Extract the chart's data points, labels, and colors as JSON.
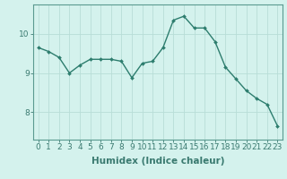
{
  "x": [
    0,
    1,
    2,
    3,
    4,
    5,
    6,
    7,
    8,
    9,
    10,
    11,
    12,
    13,
    14,
    15,
    16,
    17,
    18,
    19,
    20,
    21,
    22,
    23
  ],
  "y": [
    9.65,
    9.55,
    9.4,
    9.0,
    9.2,
    9.35,
    9.35,
    9.35,
    9.3,
    8.88,
    9.25,
    9.3,
    9.65,
    10.35,
    10.45,
    10.15,
    10.15,
    9.8,
    9.15,
    8.85,
    8.55,
    8.35,
    8.2,
    7.65
  ],
  "line_color": "#2d7d6e",
  "marker": "D",
  "marker_size": 2.0,
  "line_width": 1.0,
  "background_color": "#d4f2ed",
  "grid_color": "#b8ddd7",
  "xlabel": "Humidex (Indice chaleur)",
  "xlabel_fontsize": 7.5,
  "yticks": [
    8,
    9,
    10
  ],
  "xtick_labels": [
    "0",
    "1",
    "2",
    "3",
    "4",
    "5",
    "6",
    "7",
    "8",
    "9",
    "10",
    "11",
    "12",
    "13",
    "14",
    "15",
    "16",
    "17",
    "18",
    "19",
    "20",
    "21",
    "22",
    "23"
  ],
  "ylim": [
    7.3,
    10.75
  ],
  "xlim": [
    -0.5,
    23.5
  ],
  "tick_fontsize": 6.5,
  "axis_color": "#3a7a70",
  "spine_color": "#5a9990"
}
